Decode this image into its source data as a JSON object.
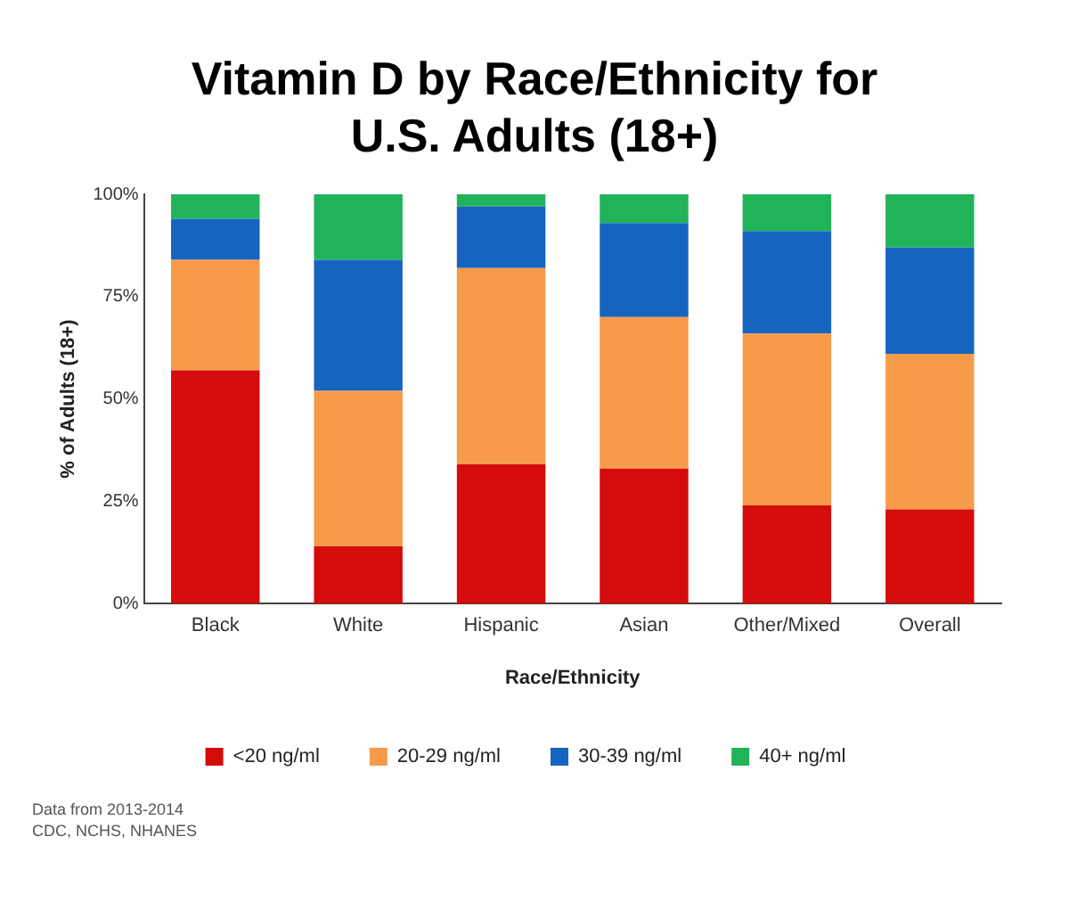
{
  "chart_data": {
    "type": "bar",
    "title": "Vitamin D by Race/Ethnicity for U.S. Adults (18+)",
    "xlabel": "Race/Ethnicity",
    "ylabel": "% of Adults (18+)",
    "categories": [
      "Black",
      "White",
      "Hispanic",
      "Asian",
      "Other/Mixed",
      "Overall"
    ],
    "series": [
      {
        "name": "<20 ng/ml",
        "color": "#d40c0c",
        "values": [
          57,
          14,
          34,
          33,
          24,
          23
        ]
      },
      {
        "name": "20-29 ng/ml",
        "color": "#f79a4a",
        "values": [
          27,
          38,
          48,
          37,
          42,
          38
        ]
      },
      {
        "name": "30-39 ng/ml",
        "color": "#1565c0",
        "values": [
          10,
          32,
          15,
          23,
          25,
          26
        ]
      },
      {
        "name": "40+ ng/ml",
        "color": "#21b35a",
        "values": [
          6,
          16,
          3,
          7,
          9,
          13
        ]
      }
    ],
    "stacked": true,
    "ylim": [
      0,
      100
    ],
    "yticks": [
      {
        "value": 0,
        "label": "0%"
      },
      {
        "value": 25,
        "label": "25%"
      },
      {
        "value": 50,
        "label": "50%"
      },
      {
        "value": 75,
        "label": "75%"
      },
      {
        "value": 100,
        "label": "100%"
      }
    ],
    "grid": false,
    "legend": "bottom",
    "annotations": [
      "Data from 2013-2014",
      "CDC, NCHS, NHANES"
    ]
  }
}
